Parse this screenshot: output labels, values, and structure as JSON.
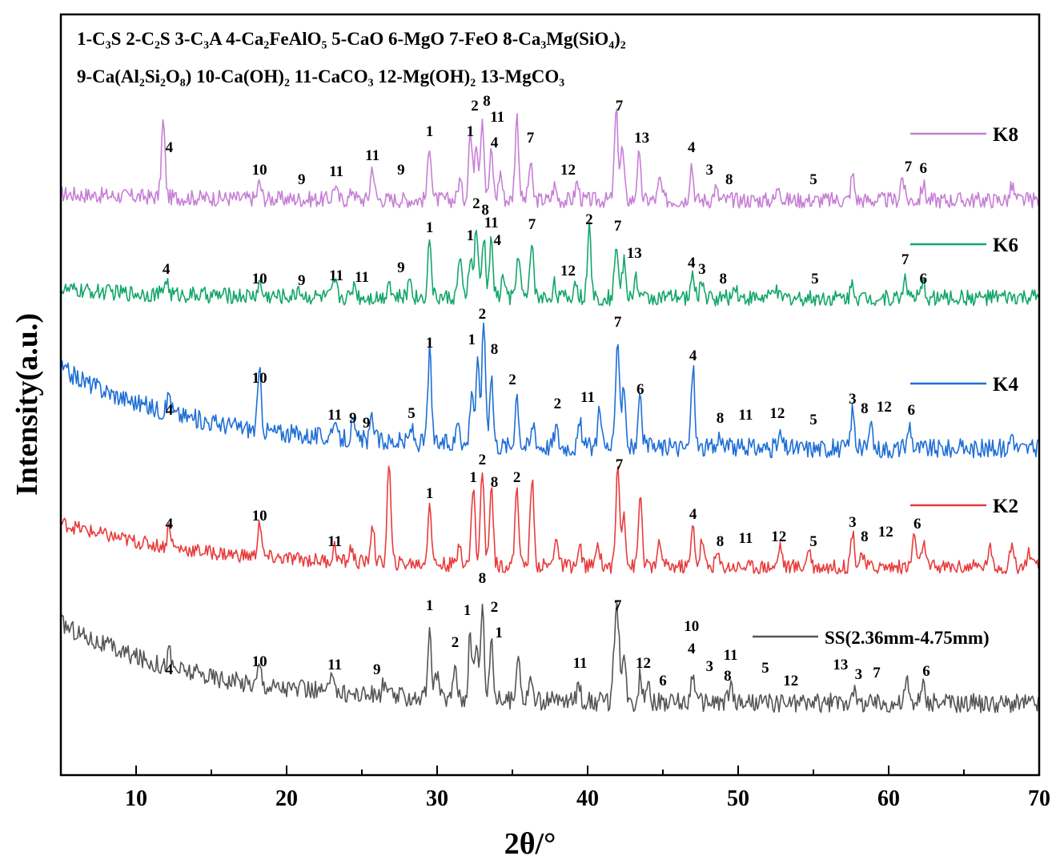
{
  "chart_data": {
    "type": "line",
    "xlabel": "2θ/°",
    "ylabel": "Intensity(a.u.)",
    "xlim": [
      5,
      70
    ],
    "xticks": [
      10,
      20,
      30,
      40,
      50,
      60,
      70
    ],
    "legend_position": "right",
    "phase_key": [
      "1-C₃S 2-C₂S 3-C₃A 4-Ca₂FeAlO₅ 5-CaO 6-MgO 7-FeO 8-Ca₃Mg(SiO₄)₂",
      "9-Ca(Al₂Si₂O₈) 10-Ca(OH)₂ 11-CaCO₃ 12-Mg(OH)₂ 13-MgCO₃"
    ],
    "series": [
      {
        "name": "K8",
        "color": "#c77fd6",
        "baseline": 250,
        "noise": 10,
        "bg_start": 8,
        "peaks": [
          [
            11.8,
            95
          ],
          [
            18.2,
            20
          ],
          [
            23.2,
            18
          ],
          [
            24.4,
            14
          ],
          [
            25.7,
            42
          ],
          [
            29.5,
            70
          ],
          [
            31.5,
            25
          ],
          [
            32.2,
            85
          ],
          [
            32.6,
            75
          ],
          [
            33.0,
            105
          ],
          [
            33.6,
            60
          ],
          [
            34.2,
            35
          ],
          [
            35.3,
            105
          ],
          [
            36.2,
            45
          ],
          [
            37.8,
            18
          ],
          [
            39.3,
            22
          ],
          [
            41.9,
            110
          ],
          [
            42.3,
            65
          ],
          [
            43.4,
            55
          ],
          [
            44.8,
            25
          ],
          [
            46.9,
            45
          ],
          [
            48.5,
            15
          ],
          [
            52.7,
            20
          ],
          [
            57.6,
            32
          ],
          [
            60.9,
            30
          ],
          [
            62.3,
            20
          ],
          [
            68.2,
            18
          ]
        ],
        "peak_labels": [
          [
            12.2,
            "4",
            -60
          ],
          [
            18.2,
            "10",
            -32
          ],
          [
            21.0,
            "9",
            -20
          ],
          [
            23.3,
            "11",
            -30
          ],
          [
            25.7,
            "11",
            -50
          ],
          [
            27.6,
            "9",
            -32
          ],
          [
            29.5,
            "1",
            -80
          ],
          [
            32.2,
            "1",
            -80
          ],
          [
            32.5,
            "2",
            -112
          ],
          [
            33.3,
            "8",
            -118
          ],
          [
            34.0,
            "11",
            -98
          ],
          [
            33.8,
            "4",
            -66
          ],
          [
            36.2,
            "7",
            -72
          ],
          [
            38.7,
            "12",
            -32
          ],
          [
            42.1,
            "7",
            -112
          ],
          [
            43.6,
            "13",
            -72
          ],
          [
            46.9,
            "4",
            -60
          ],
          [
            48.1,
            "3",
            -32
          ],
          [
            49.4,
            "8",
            -20
          ],
          [
            55.0,
            "5",
            -20
          ],
          [
            61.3,
            "7",
            -36
          ],
          [
            62.3,
            "6",
            -34
          ]
        ]
      },
      {
        "name": "K6",
        "color": "#14a66b",
        "baseline": 372,
        "noise": 10,
        "bg_start": 10,
        "peaks": [
          [
            12.0,
            20
          ],
          [
            18.2,
            16
          ],
          [
            20.8,
            12
          ],
          [
            23.2,
            20
          ],
          [
            24.5,
            18
          ],
          [
            26.8,
            22
          ],
          [
            28.2,
            26
          ],
          [
            29.5,
            72
          ],
          [
            31.5,
            48
          ],
          [
            32.2,
            50
          ],
          [
            32.6,
            86
          ],
          [
            33.1,
            75
          ],
          [
            33.6,
            70
          ],
          [
            34.4,
            28
          ],
          [
            35.4,
            58
          ],
          [
            36.3,
            70
          ],
          [
            37.8,
            18
          ],
          [
            39.2,
            20
          ],
          [
            40.1,
            86
          ],
          [
            41.9,
            70
          ],
          [
            42.4,
            45
          ],
          [
            43.2,
            28
          ],
          [
            47.0,
            30
          ],
          [
            47.6,
            22
          ],
          [
            49.8,
            18
          ],
          [
            52.4,
            14
          ],
          [
            57.6,
            20
          ],
          [
            61.1,
            28
          ],
          [
            62.3,
            16
          ]
        ],
        "peak_labels": [
          [
            12.0,
            "4",
            -30
          ],
          [
            18.2,
            "10",
            -18
          ],
          [
            21.0,
            "9",
            -16
          ],
          [
            23.3,
            "11",
            -22
          ],
          [
            25.0,
            "11",
            -20
          ],
          [
            27.6,
            "9",
            -32
          ],
          [
            29.5,
            "1",
            -82
          ],
          [
            32.2,
            "1",
            -72
          ],
          [
            32.6,
            "2",
            -112
          ],
          [
            33.2,
            "8",
            -104
          ],
          [
            33.6,
            "11",
            -88
          ],
          [
            34.0,
            "4",
            -66
          ],
          [
            36.3,
            "7",
            -86
          ],
          [
            38.7,
            "12",
            -28
          ],
          [
            40.1,
            "2",
            -92
          ],
          [
            42.0,
            "7",
            -84
          ],
          [
            43.1,
            "13",
            -50
          ],
          [
            46.9,
            "4",
            -38
          ],
          [
            47.6,
            "3",
            -30
          ],
          [
            49.0,
            "8",
            -18
          ],
          [
            55.1,
            "5",
            -18
          ],
          [
            61.1,
            "7",
            -42
          ],
          [
            62.3,
            "6",
            -18
          ]
        ]
      },
      {
        "name": "K4",
        "color": "#1f6fd6",
        "baseline": 560,
        "noise": 12,
        "bg_start": 100,
        "peaks": [
          [
            12.2,
            25
          ],
          [
            18.2,
            72
          ],
          [
            23.1,
            20
          ],
          [
            24.4,
            18
          ],
          [
            25.7,
            30
          ],
          [
            28.3,
            18
          ],
          [
            29.5,
            115
          ],
          [
            31.4,
            35
          ],
          [
            32.3,
            72
          ],
          [
            32.7,
            100
          ],
          [
            33.1,
            155
          ],
          [
            33.6,
            90
          ],
          [
            35.3,
            65
          ],
          [
            36.4,
            30
          ],
          [
            37.9,
            25
          ],
          [
            39.5,
            28
          ],
          [
            40.8,
            55
          ],
          [
            42.0,
            140
          ],
          [
            42.4,
            80
          ],
          [
            43.5,
            60
          ],
          [
            47.0,
            100
          ],
          [
            48.8,
            18
          ],
          [
            52.8,
            16
          ],
          [
            57.6,
            48
          ],
          [
            58.8,
            24
          ],
          [
            61.4,
            30
          ],
          [
            68.2,
            20
          ]
        ],
        "peak_labels": [
          [
            12.2,
            "4",
            -42
          ],
          [
            18.2,
            "10",
            -82
          ],
          [
            23.2,
            "11",
            -36
          ],
          [
            24.4,
            "9",
            -32
          ],
          [
            25.3,
            "9",
            -26
          ],
          [
            28.3,
            "5",
            -38
          ],
          [
            29.5,
            "1",
            -126
          ],
          [
            32.3,
            "1",
            -130
          ],
          [
            33.0,
            "2",
            -162
          ],
          [
            33.8,
            "8",
            -118
          ],
          [
            35.0,
            "2",
            -80
          ],
          [
            38.0,
            "2",
            -50
          ],
          [
            40.0,
            "11",
            -58
          ],
          [
            42.0,
            "7",
            -152
          ],
          [
            43.5,
            "6",
            -68
          ],
          [
            47.0,
            "4",
            -110
          ],
          [
            48.8,
            "8",
            -32
          ],
          [
            50.5,
            "11",
            -36
          ],
          [
            52.6,
            "12",
            -38
          ],
          [
            55.0,
            "5",
            -30
          ],
          [
            57.6,
            "3",
            -56
          ],
          [
            58.4,
            "8",
            -44
          ],
          [
            59.7,
            "12",
            -46
          ],
          [
            61.5,
            "6",
            -42
          ]
        ]
      },
      {
        "name": "K2",
        "color": "#e83c3c",
        "baseline": 708,
        "noise": 9,
        "bg_start": 55,
        "peaks": [
          [
            12.2,
            28
          ],
          [
            18.2,
            45
          ],
          [
            23.2,
            18
          ],
          [
            24.3,
            18
          ],
          [
            25.7,
            50
          ],
          [
            26.8,
            125
          ],
          [
            29.5,
            78
          ],
          [
            31.5,
            30
          ],
          [
            32.4,
            100
          ],
          [
            33.0,
            120
          ],
          [
            33.6,
            102
          ],
          [
            35.3,
            100
          ],
          [
            36.3,
            110
          ],
          [
            37.9,
            40
          ],
          [
            39.5,
            22
          ],
          [
            40.7,
            30
          ],
          [
            42.0,
            125
          ],
          [
            42.4,
            70
          ],
          [
            43.5,
            90
          ],
          [
            44.8,
            30
          ],
          [
            47.0,
            50
          ],
          [
            47.6,
            34
          ],
          [
            48.6,
            16
          ],
          [
            52.8,
            28
          ],
          [
            54.7,
            25
          ],
          [
            57.6,
            45
          ],
          [
            58.2,
            18
          ],
          [
            61.7,
            42
          ],
          [
            62.3,
            32
          ],
          [
            66.7,
            25
          ],
          [
            68.2,
            30
          ],
          [
            69.3,
            20
          ]
        ],
        "peak_labels": [
          [
            12.2,
            "4",
            -48
          ],
          [
            18.2,
            "10",
            -58
          ],
          [
            23.2,
            "11",
            -26
          ],
          [
            29.5,
            "1",
            -86
          ],
          [
            32.4,
            "1",
            -106
          ],
          [
            33.0,
            "2",
            -128
          ],
          [
            33.8,
            "8",
            -100
          ],
          [
            35.3,
            "2",
            -106
          ],
          [
            42.1,
            "7",
            -122
          ],
          [
            47.0,
            "4",
            -60
          ],
          [
            48.8,
            "8",
            -26
          ],
          [
            50.5,
            "11",
            -30
          ],
          [
            52.7,
            "12",
            -32
          ],
          [
            55.0,
            "5",
            -26
          ],
          [
            57.6,
            "3",
            -50
          ],
          [
            58.4,
            "8",
            -32
          ],
          [
            59.8,
            "12",
            -38
          ],
          [
            61.9,
            "6",
            -48
          ]
        ]
      },
      {
        "name": "SS(2.36mm-4.75mm)",
        "color": "#555555",
        "baseline": 878,
        "noise": 12,
        "bg_start": 100,
        "peaks": [
          [
            12.2,
            20
          ],
          [
            18.2,
            25
          ],
          [
            23.1,
            28
          ],
          [
            26.5,
            18
          ],
          [
            29.5,
            80
          ],
          [
            30.0,
            35
          ],
          [
            31.2,
            45
          ],
          [
            32.2,
            80
          ],
          [
            32.6,
            68
          ],
          [
            33.0,
            118
          ],
          [
            33.6,
            80
          ],
          [
            35.4,
            65
          ],
          [
            36.2,
            30
          ],
          [
            39.4,
            25
          ],
          [
            41.8,
            60
          ],
          [
            42.0,
            95
          ],
          [
            42.4,
            55
          ],
          [
            43.5,
            32
          ],
          [
            44.0,
            30
          ],
          [
            47.0,
            40
          ],
          [
            49.5,
            22
          ],
          [
            57.6,
            20
          ],
          [
            61.2,
            28
          ],
          [
            62.3,
            22
          ]
        ],
        "peak_labels": [
          [
            12.2,
            "4",
            -36
          ],
          [
            18.2,
            "10",
            -46
          ],
          [
            23.2,
            "11",
            -42
          ],
          [
            26.0,
            "9",
            -36
          ],
          [
            29.5,
            "1",
            -116
          ],
          [
            31.2,
            "2",
            -70
          ],
          [
            32.0,
            "1",
            -110
          ],
          [
            33.0,
            "8",
            -150
          ],
          [
            33.8,
            "2",
            -114
          ],
          [
            34.1,
            "1",
            -82
          ],
          [
            39.5,
            "11",
            -44
          ],
          [
            42.0,
            "7",
            -116
          ],
          [
            43.7,
            "12",
            -44
          ],
          [
            45.0,
            "6",
            -22
          ],
          [
            46.9,
            "10",
            -90
          ],
          [
            46.9,
            "4",
            -62
          ],
          [
            48.1,
            "3",
            -40
          ],
          [
            49.5,
            "11",
            -54
          ],
          [
            49.3,
            "8",
            -28
          ],
          [
            51.8,
            "5",
            -38
          ],
          [
            53.5,
            "12",
            -22
          ],
          [
            56.8,
            "13",
            -42
          ],
          [
            58.0,
            "3",
            -30
          ],
          [
            59.2,
            "7",
            -32
          ],
          [
            62.5,
            "6",
            -34
          ]
        ]
      }
    ]
  }
}
